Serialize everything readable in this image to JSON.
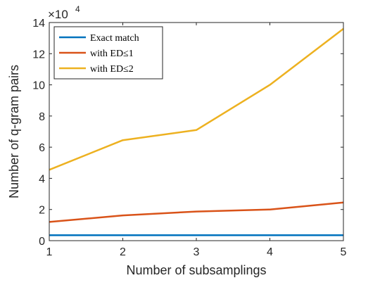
{
  "chart_data": {
    "type": "line",
    "xlabel": "Number of subsamplings",
    "ylabel": "Number of q-gram pairs",
    "x": [
      1,
      2,
      3,
      4,
      5
    ],
    "xlim": [
      1,
      5
    ],
    "ylim": [
      0,
      14
    ],
    "y_multiplier": "×10",
    "y_multiplier_exponent": "4",
    "x_ticks": [
      "1",
      "2",
      "3",
      "4",
      "5"
    ],
    "y_ticks": [
      "0",
      "2",
      "4",
      "6",
      "8",
      "10",
      "12",
      "14"
    ],
    "grid": false,
    "legend_position": "top-left",
    "series": [
      {
        "name": "Exact match",
        "color": "#0072BD",
        "values": [
          0.35,
          0.35,
          0.35,
          0.35,
          0.35
        ]
      },
      {
        "name": "with ED≤1",
        "color": "#D95319",
        "values": [
          1.2,
          1.62,
          1.87,
          2.0,
          2.45
        ]
      },
      {
        "name": "with ED≤2",
        "color": "#EDB120",
        "values": [
          4.55,
          6.45,
          7.1,
          10.0,
          13.6
        ]
      }
    ]
  }
}
